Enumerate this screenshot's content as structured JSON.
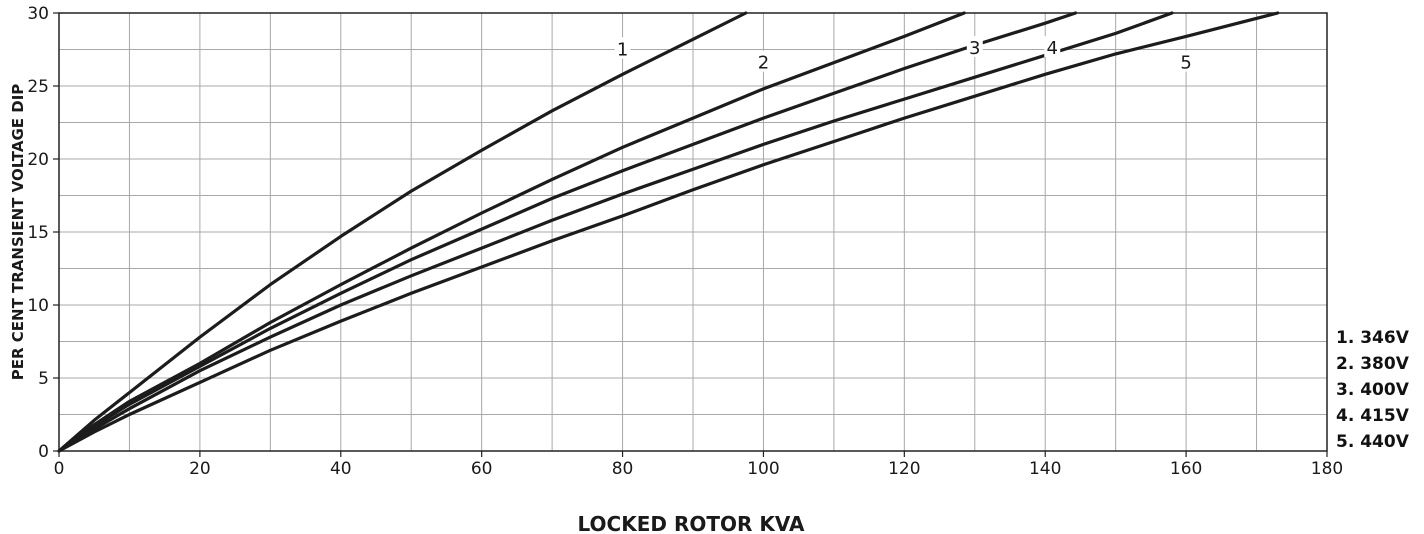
{
  "chart_data": {
    "type": "line",
    "title": "",
    "xlabel": "LOCKED ROTOR KVA",
    "ylabel": "PER CENT TRANSIENT VOLTAGE DIP",
    "xlim": [
      0,
      180
    ],
    "ylim": [
      0,
      30
    ],
    "x_ticks": [
      "0",
      "20",
      "40",
      "60",
      "80",
      "100",
      "120",
      "140",
      "160",
      "180"
    ],
    "y_ticks": [
      "0",
      "5",
      "10",
      "15",
      "20",
      "25",
      "30"
    ],
    "grid": true,
    "legend_position": "right",
    "legend": [
      "1. 346V",
      "2. 380V",
      "3. 400V",
      "4. 415V",
      "5. 440V"
    ],
    "series": [
      {
        "name": "1",
        "x": [
          0,
          5,
          10,
          20,
          30,
          40,
          50,
          60,
          70,
          80,
          90,
          97.5
        ],
        "y": [
          0,
          2.1,
          4.0,
          7.8,
          11.4,
          14.7,
          17.8,
          20.6,
          23.3,
          25.8,
          28.2,
          30
        ]
      },
      {
        "name": "2",
        "x": [
          0,
          5,
          10,
          20,
          30,
          40,
          50,
          60,
          70,
          80,
          90,
          100,
          110,
          120,
          128.5
        ],
        "y": [
          0,
          1.8,
          3.4,
          6.0,
          8.8,
          11.4,
          13.9,
          16.3,
          18.6,
          20.8,
          22.8,
          24.8,
          26.6,
          28.4,
          30
        ]
      },
      {
        "name": "3",
        "x": [
          0,
          5,
          10,
          20,
          30,
          40,
          50,
          60,
          70,
          80,
          90,
          100,
          110,
          120,
          130,
          140,
          144.3
        ],
        "y": [
          0,
          1.7,
          3.2,
          5.8,
          8.4,
          10.8,
          13.1,
          15.2,
          17.3,
          19.2,
          21.0,
          22.8,
          24.5,
          26.2,
          27.8,
          29.3,
          30
        ]
      },
      {
        "name": "4",
        "x": [
          0,
          5,
          10,
          20,
          30,
          40,
          50,
          60,
          70,
          80,
          90,
          100,
          110,
          120,
          130,
          140,
          150,
          158
        ],
        "y": [
          0,
          1.5,
          2.9,
          5.5,
          7.8,
          10.0,
          12.0,
          13.9,
          15.8,
          17.6,
          19.3,
          21.0,
          22.6,
          24.1,
          25.6,
          27.1,
          28.6,
          30
        ]
      },
      {
        "name": "5",
        "x": [
          0,
          5,
          10,
          20,
          30,
          40,
          50,
          60,
          70,
          80,
          90,
          100,
          110,
          120,
          130,
          140,
          150,
          160,
          173
        ],
        "y": [
          0,
          1.3,
          2.5,
          4.7,
          6.9,
          8.9,
          10.8,
          12.6,
          14.4,
          16.1,
          17.9,
          19.6,
          21.2,
          22.8,
          24.3,
          25.8,
          27.2,
          28.4,
          30
        ]
      }
    ],
    "curve_labels": [
      {
        "text": "1",
        "x": 80,
        "y": 27.5
      },
      {
        "text": "2",
        "x": 100,
        "y": 26.6
      },
      {
        "text": "3",
        "x": 130,
        "y": 27.6
      },
      {
        "text": "4",
        "x": 141,
        "y": 27.6
      },
      {
        "text": "5",
        "x": 160,
        "y": 26.6
      }
    ]
  }
}
